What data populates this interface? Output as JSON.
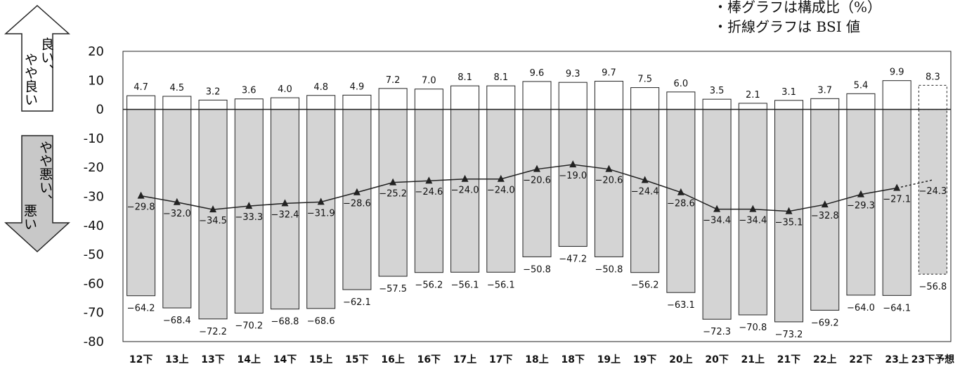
{
  "notes": [
    "・棒グラフは構成比（%）",
    "・折線グラフは BSI 値"
  ],
  "side_labels": {
    "good": [
      "良い、",
      "やや良い"
    ],
    "bad": [
      "やや悪い、",
      "悪い"
    ]
  },
  "colors": {
    "positive_bar": "#ffffff",
    "negative_bar": "#d4d4d4",
    "line": "#222222",
    "good_arrow": "#ffffff",
    "bad_arrow": "#c8c8c8"
  },
  "chart_data": {
    "type": "bar",
    "title": "",
    "xlabel": "",
    "ylabel": "",
    "ylim": [
      -80,
      20
    ],
    "yticks": [
      20,
      10,
      0,
      -10,
      -20,
      -30,
      -40,
      -50,
      -60,
      -70,
      -80
    ],
    "grid": false,
    "categories": [
      "12下",
      "13上",
      "13下",
      "14上",
      "14下",
      "15上",
      "15下",
      "16上",
      "16下",
      "17上",
      "17下",
      "18上",
      "18下",
      "19上",
      "19下",
      "20上",
      "20下",
      "21上",
      "21下",
      "22上",
      "22下",
      "23上",
      "23下予想"
    ],
    "forecast_index": 22,
    "series": [
      {
        "role": "positive",
        "values": [
          4.7,
          4.5,
          3.2,
          3.6,
          4.0,
          4.8,
          4.9,
          7.2,
          7.0,
          8.1,
          8.1,
          9.6,
          9.3,
          9.7,
          7.5,
          6.0,
          3.5,
          2.1,
          3.1,
          3.7,
          5.4,
          9.9,
          8.3
        ]
      },
      {
        "role": "negative",
        "values": [
          -64.2,
          -68.4,
          -72.2,
          -70.2,
          -68.8,
          -68.6,
          -62.1,
          -57.5,
          -56.2,
          -56.1,
          -56.1,
          -50.8,
          -47.2,
          -50.8,
          -56.2,
          -63.1,
          -72.3,
          -70.8,
          -73.2,
          -69.2,
          -64.0,
          -64.1,
          -56.8
        ]
      },
      {
        "role": "bsi",
        "values": [
          -29.8,
          -32.0,
          -34.5,
          -33.3,
          -32.4,
          -31.9,
          -28.6,
          -25.2,
          -24.6,
          -24.0,
          -24.0,
          -20.6,
          -19.0,
          -20.6,
          -24.4,
          -28.6,
          -34.4,
          -34.4,
          -35.1,
          -32.8,
          -29.3,
          -27.1,
          -24.3
        ]
      }
    ]
  }
}
